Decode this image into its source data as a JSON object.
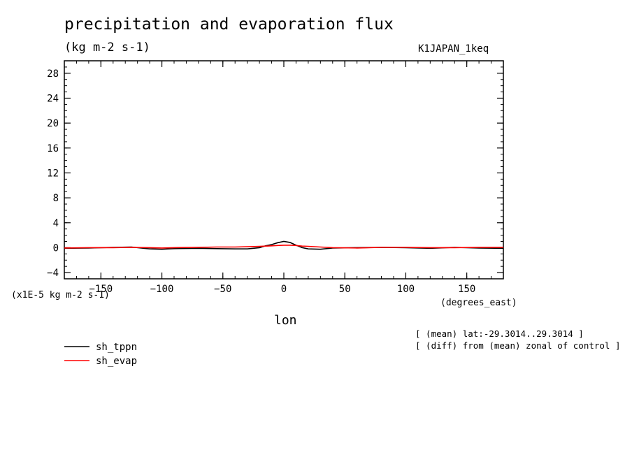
{
  "header": {
    "title": "precipitation and evaporation flux",
    "units": "(kg m-2 s-1)",
    "dataset": "K1JAPAN_1keq"
  },
  "notes": [
    "[ (mean) lat:-29.3014..29.3014 ]",
    "[ (diff) from (mean) zonal of control ]"
  ],
  "chart_data": {
    "type": "line",
    "title": "precipitation and evaporation flux",
    "xlabel": "lon",
    "x_unit_label": "(degrees_east)",
    "y_multiplier_label": "(x1E-5 kg m-2 s-1)",
    "xlim": [
      -180,
      180
    ],
    "ylim": [
      -5,
      30
    ],
    "xticks": [
      -150,
      -100,
      -50,
      0,
      50,
      100,
      150
    ],
    "yticks": [
      -4,
      0,
      4,
      8,
      12,
      16,
      20,
      24,
      28
    ],
    "x": [
      -180,
      -160,
      -140,
      -125,
      -110,
      -100,
      -90,
      -70,
      -55,
      -40,
      -30,
      -20,
      -15,
      -10,
      -5,
      0,
      5,
      10,
      15,
      20,
      30,
      40,
      60,
      80,
      100,
      120,
      140,
      160,
      180
    ],
    "series": [
      {
        "name": "sh_tppn",
        "color": "#000000",
        "values": [
          -0.1,
          -0.05,
          0.05,
          0.1,
          -0.2,
          -0.25,
          -0.15,
          -0.1,
          -0.15,
          -0.2,
          -0.2,
          0.0,
          0.3,
          0.5,
          0.8,
          1.0,
          0.85,
          0.4,
          0.0,
          -0.2,
          -0.25,
          -0.05,
          0.0,
          0.05,
          0.0,
          -0.1,
          0.05,
          -0.05,
          -0.1
        ]
      },
      {
        "name": "sh_evap",
        "color": "#ff0000",
        "values": [
          -0.05,
          0.0,
          0.0,
          0.05,
          0.0,
          -0.05,
          0.0,
          0.05,
          0.1,
          0.1,
          0.15,
          0.2,
          0.25,
          0.3,
          0.35,
          0.4,
          0.4,
          0.35,
          0.25,
          0.2,
          0.1,
          0.0,
          -0.05,
          0.05,
          0.05,
          0.0,
          0.0,
          0.05,
          0.05
        ]
      }
    ],
    "legend_placement": "bottom-left",
    "grid": false
  }
}
